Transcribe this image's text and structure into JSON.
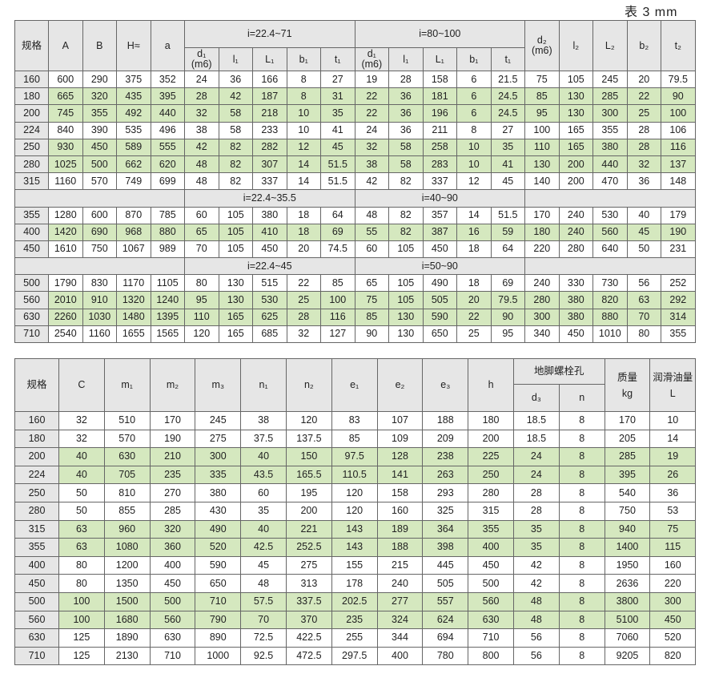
{
  "caption": "表 3  mm",
  "table1": {
    "header": {
      "spec": "规格",
      "cols": [
        "A",
        "B",
        "H≈",
        "a"
      ],
      "group1": "i=22.4~71",
      "group2": "i=80~100",
      "sub": [
        "d₁\n(m6)",
        "l₁",
        "L₁",
        "b₁",
        "t₁"
      ],
      "right": [
        "d₂\n(m6)",
        "l₂",
        "L₂",
        "b₂",
        "t₂"
      ]
    },
    "highlighted": [
      "180",
      "200",
      "250",
      "280",
      "400",
      "560",
      "630"
    ],
    "sections": [
      {
        "ranges": null,
        "rows": [
          [
            "160",
            "600",
            "290",
            "375",
            "352",
            "24",
            "36",
            "166",
            "8",
            "27",
            "19",
            "28",
            "158",
            "6",
            "21.5",
            "75",
            "105",
            "245",
            "20",
            "79.5"
          ],
          [
            "180",
            "665",
            "320",
            "435",
            "395",
            "28",
            "42",
            "187",
            "8",
            "31",
            "22",
            "36",
            "181",
            "6",
            "24.5",
            "85",
            "130",
            "285",
            "22",
            "90"
          ],
          [
            "200",
            "745",
            "355",
            "492",
            "440",
            "32",
            "58",
            "218",
            "10",
            "35",
            "22",
            "36",
            "196",
            "6",
            "24.5",
            "95",
            "130",
            "300",
            "25",
            "100"
          ],
          [
            "224",
            "840",
            "390",
            "535",
            "496",
            "38",
            "58",
            "233",
            "10",
            "41",
            "24",
            "36",
            "211",
            "8",
            "27",
            "100",
            "165",
            "355",
            "28",
            "106"
          ],
          [
            "250",
            "930",
            "450",
            "589",
            "555",
            "42",
            "82",
            "282",
            "12",
            "45",
            "32",
            "58",
            "258",
            "10",
            "35",
            "110",
            "165",
            "380",
            "28",
            "116"
          ],
          [
            "280",
            "1025",
            "500",
            "662",
            "620",
            "48",
            "82",
            "307",
            "14",
            "51.5",
            "38",
            "58",
            "283",
            "10",
            "41",
            "130",
            "200",
            "440",
            "32",
            "137"
          ],
          [
            "315",
            "1160",
            "570",
            "749",
            "699",
            "48",
            "82",
            "337",
            "14",
            "51.5",
            "42",
            "82",
            "337",
            "12",
            "45",
            "140",
            "200",
            "470",
            "36",
            "148"
          ]
        ]
      },
      {
        "ranges": [
          "i=22.4~35.5",
          "i=40~90"
        ],
        "rows": [
          [
            "355",
            "1280",
            "600",
            "870",
            "785",
            "60",
            "105",
            "380",
            "18",
            "64",
            "48",
            "82",
            "357",
            "14",
            "51.5",
            "170",
            "240",
            "530",
            "40",
            "179"
          ],
          [
            "400",
            "1420",
            "690",
            "968",
            "880",
            "65",
            "105",
            "410",
            "18",
            "69",
            "55",
            "82",
            "387",
            "16",
            "59",
            "180",
            "240",
            "560",
            "45",
            "190"
          ],
          [
            "450",
            "1610",
            "750",
            "1067",
            "989",
            "70",
            "105",
            "450",
            "20",
            "74.5",
            "60",
            "105",
            "450",
            "18",
            "64",
            "220",
            "280",
            "640",
            "50",
            "231"
          ]
        ]
      },
      {
        "ranges": [
          "i=22.4~45",
          "i=50~90"
        ],
        "rows": [
          [
            "500",
            "1790",
            "830",
            "1170",
            "1105",
            "80",
            "130",
            "515",
            "22",
            "85",
            "65",
            "105",
            "490",
            "18",
            "69",
            "240",
            "330",
            "730",
            "56",
            "252"
          ],
          [
            "560",
            "2010",
            "910",
            "1320",
            "1240",
            "95",
            "130",
            "530",
            "25",
            "100",
            "75",
            "105",
            "505",
            "20",
            "79.5",
            "280",
            "380",
            "820",
            "63",
            "292"
          ],
          [
            "630",
            "2260",
            "1030",
            "1480",
            "1395",
            "110",
            "165",
            "625",
            "28",
            "116",
            "85",
            "130",
            "590",
            "22",
            "90",
            "300",
            "380",
            "880",
            "70",
            "314"
          ],
          [
            "710",
            "2540",
            "1160",
            "1655",
            "1565",
            "120",
            "165",
            "685",
            "32",
            "127",
            "90",
            "130",
            "650",
            "25",
            "95",
            "340",
            "450",
            "1010",
            "80",
            "355"
          ]
        ]
      }
    ]
  },
  "table2": {
    "header": {
      "spec": "规格",
      "cols": [
        "C",
        "m₁",
        "m₂",
        "m₃",
        "n₁",
        "n₂",
        "e₁",
        "e₂",
        "e₃",
        "h"
      ],
      "bolt_group": "地脚螺栓孔",
      "bolt_sub": [
        "d₃",
        "n"
      ],
      "mass": "质量\nkg",
      "oil": "润滑油量\nL"
    },
    "highlighted": [
      "200",
      "224",
      "315",
      "355",
      "500",
      "560"
    ],
    "rows": [
      [
        "160",
        "32",
        "510",
        "170",
        "245",
        "38",
        "120",
        "83",
        "107",
        "188",
        "180",
        "18.5",
        "8",
        "170",
        "10"
      ],
      [
        "180",
        "32",
        "570",
        "190",
        "275",
        "37.5",
        "137.5",
        "85",
        "109",
        "209",
        "200",
        "18.5",
        "8",
        "205",
        "14"
      ],
      [
        "200",
        "40",
        "630",
        "210",
        "300",
        "40",
        "150",
        "97.5",
        "128",
        "238",
        "225",
        "24",
        "8",
        "285",
        "19"
      ],
      [
        "224",
        "40",
        "705",
        "235",
        "335",
        "43.5",
        "165.5",
        "110.5",
        "141",
        "263",
        "250",
        "24",
        "8",
        "395",
        "26"
      ],
      [
        "250",
        "50",
        "810",
        "270",
        "380",
        "60",
        "195",
        "120",
        "158",
        "293",
        "280",
        "28",
        "8",
        "540",
        "36"
      ],
      [
        "280",
        "50",
        "855",
        "285",
        "430",
        "35",
        "200",
        "120",
        "160",
        "325",
        "315",
        "28",
        "8",
        "750",
        "53"
      ],
      [
        "315",
        "63",
        "960",
        "320",
        "490",
        "40",
        "221",
        "143",
        "189",
        "364",
        "355",
        "35",
        "8",
        "940",
        "75"
      ],
      [
        "355",
        "63",
        "1080",
        "360",
        "520",
        "42.5",
        "252.5",
        "143",
        "188",
        "398",
        "400",
        "35",
        "8",
        "1400",
        "115"
      ],
      [
        "400",
        "80",
        "1200",
        "400",
        "590",
        "45",
        "275",
        "155",
        "215",
        "445",
        "450",
        "42",
        "8",
        "1950",
        "160"
      ],
      [
        "450",
        "80",
        "1350",
        "450",
        "650",
        "48",
        "313",
        "178",
        "240",
        "505",
        "500",
        "42",
        "8",
        "2636",
        "220"
      ],
      [
        "500",
        "100",
        "1500",
        "500",
        "710",
        "57.5",
        "337.5",
        "202.5",
        "277",
        "557",
        "560",
        "48",
        "8",
        "3800",
        "300"
      ],
      [
        "560",
        "100",
        "1680",
        "560",
        "790",
        "70",
        "370",
        "235",
        "324",
        "624",
        "630",
        "48",
        "8",
        "5100",
        "450"
      ],
      [
        "630",
        "125",
        "1890",
        "630",
        "890",
        "72.5",
        "422.5",
        "255",
        "344",
        "694",
        "710",
        "56",
        "8",
        "7060",
        "520"
      ],
      [
        "710",
        "125",
        "2130",
        "710",
        "1000",
        "92.5",
        "472.5",
        "297.5",
        "400",
        "780",
        "800",
        "56",
        "8",
        "9205",
        "820"
      ]
    ]
  },
  "colors": {
    "highlight": "#d5e8bf",
    "header": "#e6e6e6"
  }
}
